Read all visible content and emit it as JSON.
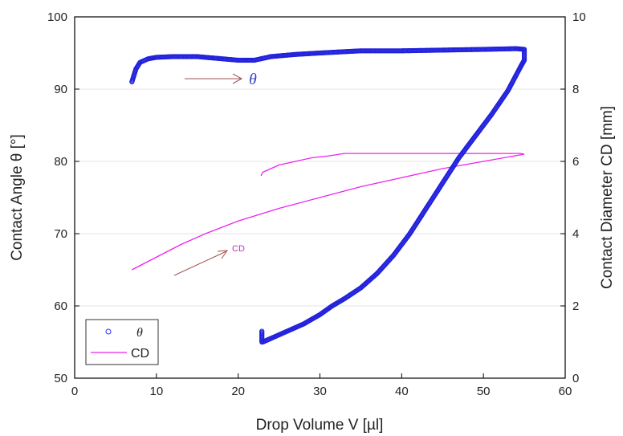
{
  "chart_data": {
    "type": "scatter",
    "xlabel": "Drop Volume   V [µl]",
    "ylabel": "Contact Angle  θ [°]",
    "y2label": "Contact Diameter CD  [mm]",
    "xlim": [
      0,
      60
    ],
    "ylim": [
      50,
      100
    ],
    "y2lim": [
      0,
      10
    ],
    "xticks": [
      "0",
      "10",
      "20",
      "30",
      "40",
      "50",
      "60"
    ],
    "yticks": [
      "50",
      "60",
      "70",
      "80",
      "90",
      "100"
    ],
    "y2ticks": [
      "0",
      "2",
      "4",
      "6",
      "8",
      "10"
    ],
    "grid": true,
    "legend_position": "bottom-left",
    "legend": [
      {
        "label": "θ",
        "marker": "circle",
        "color": "#3333ee"
      },
      {
        "label": "CD",
        "marker": "line",
        "color": "#ee22ee"
      }
    ],
    "series": [
      {
        "name": "θ",
        "axis": "left",
        "color": "#2222dd",
        "marker": "circle",
        "x": [
          7.0,
          7.5,
          8.0,
          9.0,
          10.0,
          12.0,
          15.0,
          18.0,
          20.0,
          22.0,
          24.0,
          27.0,
          30.0,
          35.0,
          40.0,
          45.0,
          50.0,
          54.0,
          55.0,
          55.0,
          54.5,
          53.0,
          51.0,
          49.0,
          47.0,
          45.0,
          43.0,
          41.0,
          39.0,
          37.0,
          35.0,
          33.0,
          31.5,
          30.0,
          28.0,
          26.0,
          24.0,
          23.0,
          22.9,
          22.9
        ],
        "y": [
          91.0,
          92.8,
          93.7,
          94.2,
          94.4,
          94.5,
          94.5,
          94.2,
          94.0,
          94.0,
          94.5,
          94.8,
          95.0,
          95.3,
          95.3,
          95.4,
          95.5,
          95.6,
          95.5,
          94.0,
          93.0,
          89.8,
          86.5,
          83.5,
          80.5,
          77.0,
          73.5,
          70.0,
          67.0,
          64.5,
          62.5,
          61.0,
          60.0,
          58.8,
          57.5,
          56.5,
          55.5,
          55.0,
          55.0,
          56.5
        ]
      },
      {
        "name": "CD",
        "axis": "right",
        "color": "#ee22ee",
        "marker": "line",
        "x": [
          7.0,
          10.0,
          13.0,
          16.0,
          20.0,
          25.0,
          30.0,
          35.0,
          40.0,
          45.0,
          50.0,
          55.0,
          54.5,
          50.0,
          45.0,
          40.0,
          35.0,
          33.0,
          31.0,
          29.0,
          27.0,
          25.0,
          24.0,
          23.0,
          22.8
        ],
        "y": [
          3.0,
          3.35,
          3.7,
          4.0,
          4.35,
          4.7,
          5.0,
          5.3,
          5.55,
          5.8,
          6.0,
          6.2,
          6.22,
          6.22,
          6.22,
          6.22,
          6.22,
          6.22,
          6.15,
          6.1,
          6.0,
          5.9,
          5.8,
          5.7,
          5.6
        ]
      }
    ],
    "annotations": [
      {
        "text": "θ",
        "target": "θ"
      },
      {
        "text": "CD",
        "target": "CD"
      }
    ]
  }
}
